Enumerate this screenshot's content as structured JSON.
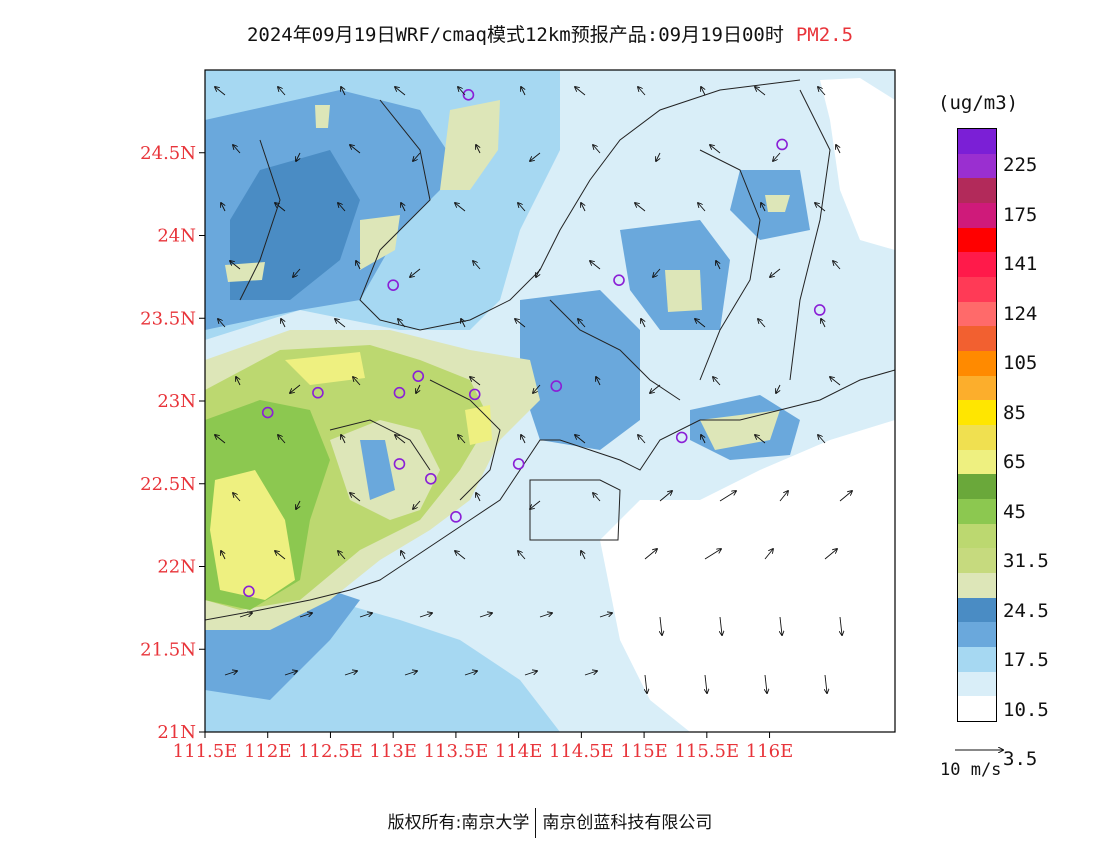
{
  "title": {
    "text": "2024年09月19日WRF/cmaq模式12km预报产品:09月19日00时",
    "pollutant": "PM2.5"
  },
  "axes": {
    "lat_ticks": [
      "21N",
      "21.5N",
      "22N",
      "22.5N",
      "23N",
      "23.5N",
      "24N",
      "24.5N"
    ],
    "lon_ticks": [
      "111.5E",
      "112E",
      "112.5E",
      "113E",
      "113.5E",
      "114E",
      "114.5E",
      "115E",
      "115.5E",
      "116E"
    ]
  },
  "legend": {
    "unit": "(ug/m3)",
    "colors": [
      "#7b1fd6",
      "#9a2fd0",
      "#b22a5a",
      "#cf1a7a",
      "#ff0000",
      "#ff1a4a",
      "#ff3a56",
      "#ff6a6a",
      "#f26030",
      "#ff8a00",
      "#fcae2c",
      "#ffe600",
      "#f0e050",
      "#eef080",
      "#6aa83a",
      "#8cc850",
      "#bcd870",
      "#c6da7e",
      "#dde6b8",
      "#4a8cc4",
      "#6aa8dc",
      "#a6d8f2",
      "#d9eef8",
      "#ffffff"
    ],
    "labels": [
      "225",
      "175",
      "141",
      "124",
      "105",
      "85",
      "65",
      "45",
      "31.5",
      "24.5",
      "17.5",
      "10.5",
      "3.5"
    ]
  },
  "wind_reference": {
    "label": "10 m/s"
  },
  "footer": {
    "copyright": "版权所有:南京大学",
    "company": "南京创蓝科技有限公司"
  },
  "stations": [
    {
      "lon": 113.6,
      "lat": 24.85
    },
    {
      "lon": 116.1,
      "lat": 24.55
    },
    {
      "lon": 113.0,
      "lat": 23.7
    },
    {
      "lon": 114.8,
      "lat": 23.73
    },
    {
      "lon": 116.4,
      "lat": 23.55
    },
    {
      "lon": 112.4,
      "lat": 23.05
    },
    {
      "lon": 113.05,
      "lat": 23.05
    },
    {
      "lon": 113.2,
      "lat": 23.15
    },
    {
      "lon": 113.65,
      "lat": 23.04
    },
    {
      "lon": 114.3,
      "lat": 23.09
    },
    {
      "lon": 112.0,
      "lat": 22.93
    },
    {
      "lon": 115.3,
      "lat": 22.78
    },
    {
      "lon": 113.05,
      "lat": 22.62
    },
    {
      "lon": 113.3,
      "lat": 22.53
    },
    {
      "lon": 114.0,
      "lat": 22.62
    },
    {
      "lon": 113.5,
      "lat": 22.3
    },
    {
      "lon": 111.85,
      "lat": 21.85
    }
  ]
}
